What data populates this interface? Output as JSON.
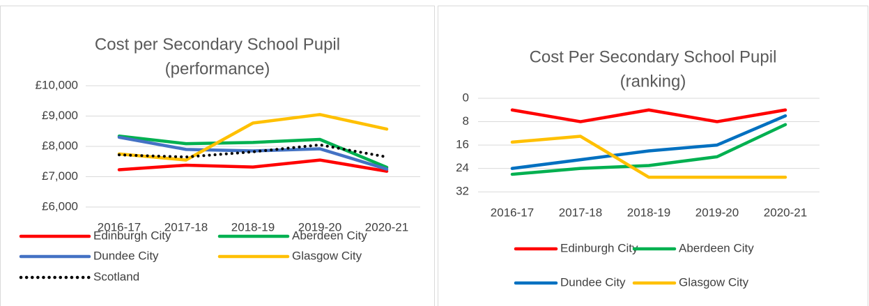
{
  "chart_data": [
    {
      "type": "line",
      "title": [
        "Cost per Secondary School Pupil",
        "(performance)"
      ],
      "categories": [
        "2016-17",
        "2017-18",
        "2018-19",
        "2019-20",
        "2020-21"
      ],
      "series": [
        {
          "name": "Edinburgh City",
          "color": "#ff0000",
          "values": [
            7230,
            7380,
            7320,
            7550,
            7180
          ]
        },
        {
          "name": "Aberdeen City",
          "color": "#00b050",
          "values": [
            8340,
            8090,
            8130,
            8230,
            7310
          ]
        },
        {
          "name": "Dundee City",
          "color": "#4472c4",
          "values": [
            8300,
            7900,
            7850,
            7920,
            7250
          ]
        },
        {
          "name": "Glasgow City",
          "color": "#ffc000",
          "values": [
            7750,
            7550,
            8770,
            9050,
            8570
          ]
        },
        {
          "name": "Scotland",
          "color": "#000000",
          "dashed": true,
          "values": [
            7720,
            7650,
            7820,
            8050,
            7650
          ]
        }
      ],
      "ylim": [
        6000,
        10000
      ],
      "yticks": [
        {
          "value": 6000,
          "label": "£6,000"
        },
        {
          "value": 7000,
          "label": "£7,000"
        },
        {
          "value": 8000,
          "label": "£8,000"
        },
        {
          "value": 9000,
          "label": "£9,000"
        },
        {
          "value": 10000,
          "label": "£10,000"
        }
      ],
      "grid": true,
      "legend": "bottom"
    },
    {
      "type": "line",
      "title": [
        "Cost Per Secondary School Pupil",
        "(ranking)"
      ],
      "categories": [
        "2016-17",
        "2017-18",
        "2018-19",
        "2019-20",
        "2020-21"
      ],
      "series": [
        {
          "name": "Edinburgh City",
          "color": "#ff0000",
          "values": [
            4,
            8,
            4,
            8,
            4
          ]
        },
        {
          "name": "Aberdeen City",
          "color": "#00b050",
          "values": [
            26,
            24,
            23,
            20,
            9
          ]
        },
        {
          "name": "Dundee City",
          "color": "#0070c0",
          "values": [
            24,
            21,
            18,
            16,
            6
          ]
        },
        {
          "name": "Glasgow City",
          "color": "#ffc000",
          "values": [
            15,
            13,
            27,
            27,
            27
          ]
        }
      ],
      "ylim": [
        0,
        36
      ],
      "yticks": [
        0,
        8,
        16,
        24,
        32
      ],
      "y_reversed": true,
      "grid": true,
      "legend": "bottom"
    }
  ]
}
